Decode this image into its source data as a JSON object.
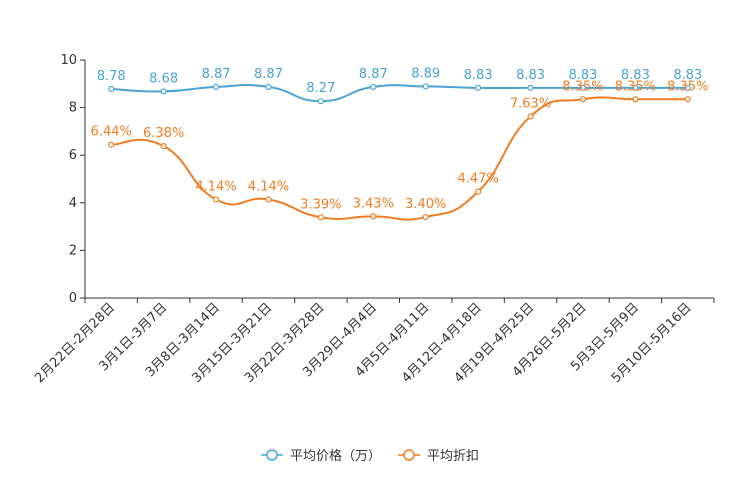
{
  "chart_data": {
    "type": "line",
    "title": "",
    "xlabel": "",
    "ylabel": "",
    "ylim": [
      0,
      10
    ],
    "yticks": [
      0,
      2,
      4,
      6,
      8,
      10
    ],
    "categories": [
      "2月22日-2月28日",
      "3月1日-3月7日",
      "3月8日-3月14日",
      "3月15日-3月21日",
      "3月22日-3月28日",
      "3月29日-4月4日",
      "4月5日-4月11日",
      "4月12日-4月18日",
      "4月19日-4月25日",
      "4月26日-5月2日",
      "5月3日-5月9日",
      "5月10日-5月16日"
    ],
    "series": [
      {
        "name": "平均价格（万）",
        "color": "#4aa3d4",
        "values": [
          8.78,
          8.68,
          8.87,
          8.87,
          8.27,
          8.87,
          8.89,
          8.83,
          8.83,
          8.83,
          8.83,
          8.83
        ],
        "labels": [
          "8.78",
          "8.68",
          "8.87",
          "8.87",
          "8.27",
          "8.87",
          "8.89",
          "8.83",
          "8.83",
          "8.83",
          "8.83",
          "8.83"
        ]
      },
      {
        "name": "平均折扣",
        "color": "#f07d22",
        "values": [
          6.44,
          6.38,
          4.14,
          4.14,
          3.39,
          3.43,
          3.4,
          4.47,
          7.63,
          8.35,
          8.35,
          8.35
        ],
        "labels": [
          "6.44%",
          "6.38%",
          "4.14%",
          "4.14%",
          "3.39%",
          "3.43%",
          "3.40%",
          "4.47%",
          "7.63%",
          "8.35%",
          "8.35%",
          "8.35%"
        ]
      }
    ],
    "legend": "bottom-center",
    "grid": false
  }
}
